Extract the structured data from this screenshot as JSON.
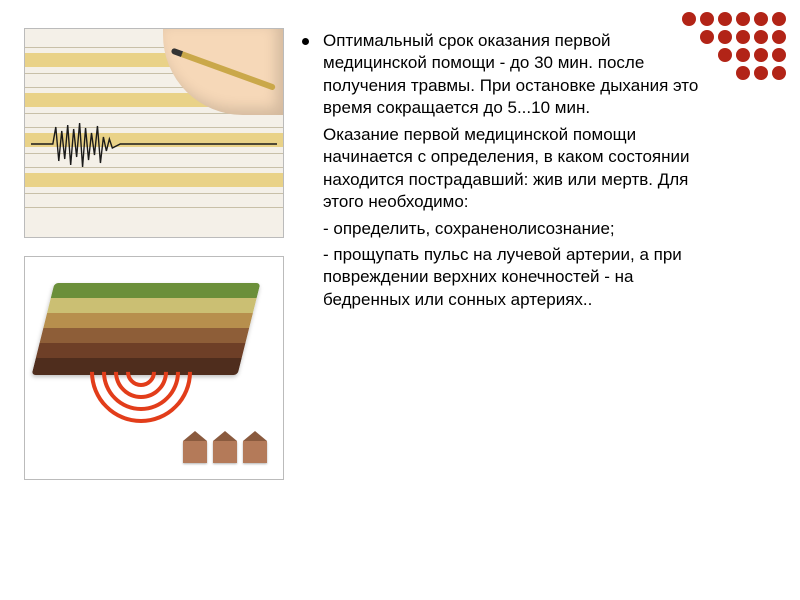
{
  "decor": {
    "color": "#b22417",
    "pattern": [
      [
        1,
        1,
        1,
        1,
        1,
        1
      ],
      [
        0,
        1,
        1,
        1,
        1,
        1
      ],
      [
        0,
        0,
        1,
        1,
        1,
        1
      ],
      [
        0,
        0,
        0,
        1,
        1,
        1
      ]
    ]
  },
  "text": {
    "p1": "Оптимальный срок оказания первой медицинской помощи - до 30 мин. после получения травмы. При остановке дыхания это время сокращается до 5...10 мин.",
    "p2": "Оказание первой медицинской помощи начинается с определения, в каком состоянии находится пострадавший: жив или мертв. Для этого необходимо:",
    "p3": "- определить, сохраненолисознание;",
    "p4": "- прощупать пульс на лучевой артерии, а при повреждении верхних конечностей - на бедренных или сонных артериях.."
  },
  "figures": {
    "seismograph": {
      "stripe_color": "#e9d288",
      "paper_color": "#f4f0e8",
      "wave_stroke": "#1a1a1a",
      "hand_color": "#f6d8b8",
      "pen_body": "#caa84a"
    },
    "geology": {
      "layers": [
        "#6b8f3a",
        "#cbbf73",
        "#b78f4d",
        "#8e5e38",
        "#6e3f27",
        "#4f2d1d"
      ],
      "wave_color": "#e23d1a",
      "house_body": "#b47a59",
      "house_roof": "#8a5a3e"
    }
  },
  "typography": {
    "body_fontsize": 17,
    "body_color": "#000000",
    "line_height": 1.32
  }
}
